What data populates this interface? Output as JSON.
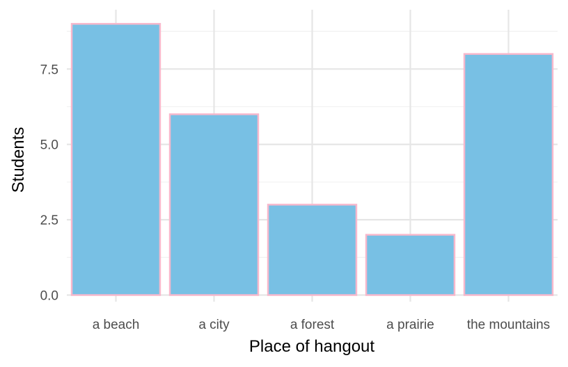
{
  "chart_data": {
    "type": "bar",
    "title": "",
    "xlabel": "Place of hangout",
    "ylabel": "Students",
    "categories": [
      "a beach",
      "a city",
      "a forest",
      "a prairie",
      "the mountains"
    ],
    "values": [
      9,
      6,
      3,
      2,
      8
    ],
    "ylim": [
      0,
      9
    ],
    "yticks": [
      0,
      2.5,
      5,
      7.5
    ],
    "ytick_labels": [
      "0.0",
      "2.5",
      "5.0",
      "7.5"
    ],
    "grid": true,
    "legend": "none",
    "colors": {
      "bar_fill": "#78c0e4",
      "bar_outline": "#f7b8cc",
      "grid_major": "#e6e6e6",
      "grid_minor": "#f1f1f1",
      "background": "#ffffff"
    }
  }
}
